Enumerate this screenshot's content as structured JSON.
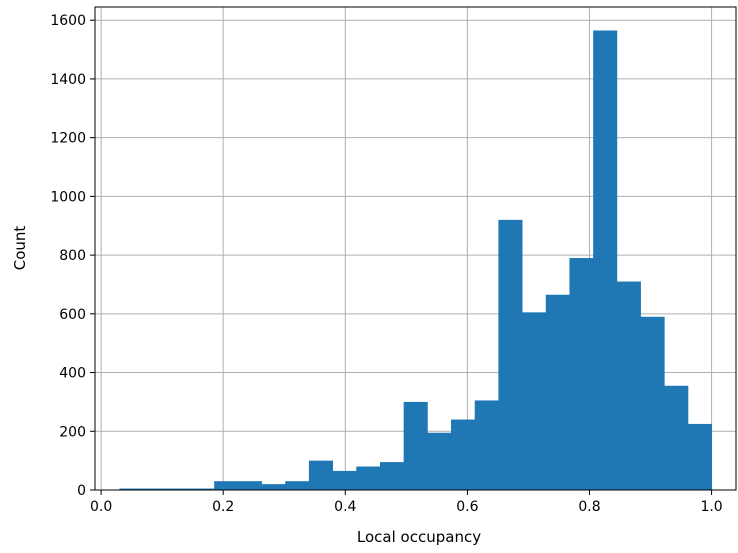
{
  "chart_data": {
    "type": "bar",
    "title": "",
    "xlabel": "Local occupancy",
    "ylabel": "Count",
    "xlim": [
      -0.01,
      1.04
    ],
    "ylim": [
      0,
      1645
    ],
    "grid": true,
    "bar_color": "#1f77b4",
    "grid_color": "#b0b0b0",
    "x_ticks": [
      0.0,
      0.2,
      0.4,
      0.6,
      0.8,
      1.0
    ],
    "x_tick_labels": [
      "0.0",
      "0.2",
      "0.4",
      "0.6",
      "0.8",
      "1.0"
    ],
    "y_ticks": [
      0,
      200,
      400,
      600,
      800,
      1000,
      1200,
      1400,
      1600
    ],
    "y_tick_labels": [
      "0",
      "200",
      "400",
      "600",
      "800",
      "1000",
      "1200",
      "1400",
      "1600"
    ],
    "bin_edges": [
      0.03,
      0.0688,
      0.1076,
      0.1464,
      0.1852,
      0.224,
      0.2628,
      0.3016,
      0.3404,
      0.3792,
      0.418,
      0.4568,
      0.4956,
      0.5344,
      0.5732,
      0.612,
      0.6508,
      0.6896,
      0.7284,
      0.7672,
      0.806,
      0.8448,
      0.8836,
      0.9224,
      0.9612,
      1.0
    ],
    "values": [
      5,
      5,
      5,
      5,
      30,
      30,
      20,
      30,
      100,
      65,
      80,
      95,
      300,
      195,
      240,
      305,
      920,
      605,
      665,
      790,
      1565,
      710,
      590,
      355,
      225
    ]
  }
}
